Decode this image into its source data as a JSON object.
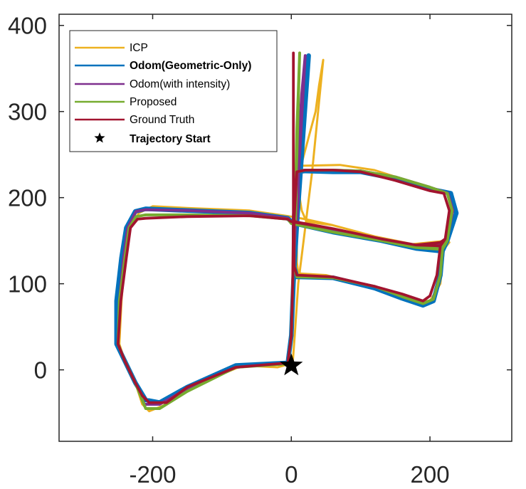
{
  "chart_data": {
    "type": "line",
    "title": "",
    "xlabel": "",
    "ylabel": "",
    "xlim": [
      -335,
      318
    ],
    "ylim": [
      -83,
      413
    ],
    "xticks": [
      -200,
      0,
      200
    ],
    "xtick_labels": [
      "-200",
      "0",
      "200"
    ],
    "yticks": [
      0,
      100,
      200,
      300,
      400
    ],
    "ytick_labels": [
      "0",
      "100",
      "200",
      "300",
      "400"
    ],
    "grid": false,
    "legend_position": "top-left",
    "series": [
      {
        "name": "ICP",
        "color": "#EDB120",
        "points": [
          [
            -20,
            3
          ],
          [
            -70,
            5
          ],
          [
            -130,
            -15
          ],
          [
            -180,
            -40
          ],
          [
            -205,
            -48
          ],
          [
            -215,
            -40
          ],
          [
            -225,
            -15
          ],
          [
            -240,
            10
          ],
          [
            -248,
            30
          ],
          [
            -245,
            80
          ],
          [
            -240,
            130
          ],
          [
            -232,
            165
          ],
          [
            -220,
            182
          ],
          [
            -200,
            190
          ],
          [
            -150,
            188
          ],
          [
            -60,
            185
          ],
          [
            0,
            178
          ],
          [
            20,
            175
          ],
          [
            60,
            168
          ],
          [
            120,
            155
          ],
          [
            170,
            146
          ],
          [
            215,
            145
          ],
          [
            225,
            150
          ],
          [
            232,
            190
          ],
          [
            225,
            205
          ],
          [
            175,
            218
          ],
          [
            120,
            232
          ],
          [
            70,
            238
          ],
          [
            15,
            237
          ],
          [
            10,
            232
          ],
          [
            8,
            175
          ],
          [
            8,
            125
          ],
          [
            10,
            112
          ],
          [
            50,
            110
          ],
          [
            100,
            100
          ],
          [
            150,
            90
          ],
          [
            175,
            80
          ],
          [
            200,
            80
          ],
          [
            215,
            100
          ],
          [
            220,
            140
          ],
          [
            228,
            148
          ],
          [
            225,
            150
          ],
          [
            175,
            146
          ],
          [
            120,
            155
          ],
          [
            60,
            168
          ],
          [
            22,
            172
          ],
          [
            15,
            185
          ],
          [
            12,
            200
          ],
          [
            15,
            240
          ],
          [
            25,
            270
          ],
          [
            35,
            300
          ],
          [
            40,
            330
          ],
          [
            46,
            360
          ],
          [
            30,
            230
          ],
          [
            20,
            165
          ],
          [
            10,
            100
          ],
          [
            5,
            40
          ],
          [
            2,
            8
          ],
          [
            -20,
            3
          ]
        ]
      },
      {
        "name": "Odom(Geometric-Only)",
        "color": "#0072BD",
        "points": [
          [
            -5,
            8
          ],
          [
            -80,
            5
          ],
          [
            -150,
            -20
          ],
          [
            -190,
            -38
          ],
          [
            -210,
            -35
          ],
          [
            -225,
            -15
          ],
          [
            -240,
            10
          ],
          [
            -252,
            30
          ],
          [
            -252,
            80
          ],
          [
            -245,
            130
          ],
          [
            -238,
            165
          ],
          [
            -225,
            184
          ],
          [
            -210,
            187
          ],
          [
            -150,
            185
          ],
          [
            -60,
            182
          ],
          [
            -5,
            176
          ],
          [
            0,
            172
          ],
          [
            60,
            160
          ],
          [
            130,
            150
          ],
          [
            180,
            141
          ],
          [
            215,
            138
          ],
          [
            225,
            150
          ],
          [
            238,
            182
          ],
          [
            230,
            205
          ],
          [
            200,
            210
          ],
          [
            150,
            222
          ],
          [
            100,
            230
          ],
          [
            60,
            230
          ],
          [
            20,
            231
          ],
          [
            8,
            230
          ],
          [
            4,
            175
          ],
          [
            4,
            120
          ],
          [
            8,
            108
          ],
          [
            60,
            107
          ],
          [
            120,
            95
          ],
          [
            160,
            83
          ],
          [
            190,
            75
          ],
          [
            205,
            80
          ],
          [
            215,
            110
          ],
          [
            218,
            138
          ],
          [
            225,
            150
          ],
          [
            218,
            144
          ],
          [
            180,
            141
          ],
          [
            130,
            150
          ],
          [
            60,
            160
          ],
          [
            5,
            170
          ],
          [
            8,
            175
          ],
          [
            10,
            200
          ],
          [
            12,
            240
          ],
          [
            15,
            280
          ],
          [
            20,
            320
          ],
          [
            25,
            365
          ],
          [
            15,
            250
          ],
          [
            8,
            170
          ],
          [
            3,
            100
          ],
          [
            0,
            40
          ],
          [
            -5,
            8
          ]
        ]
      },
      {
        "name": "Odom(with intensity)",
        "color": "#7E2F8E",
        "points": [
          [
            -5,
            8
          ],
          [
            -80,
            3
          ],
          [
            -150,
            -22
          ],
          [
            -190,
            -40
          ],
          [
            -212,
            -40
          ],
          [
            -225,
            -15
          ],
          [
            -240,
            10
          ],
          [
            -250,
            30
          ],
          [
            -248,
            80
          ],
          [
            -242,
            130
          ],
          [
            -236,
            165
          ],
          [
            -224,
            184
          ],
          [
            -210,
            186
          ],
          [
            -150,
            185
          ],
          [
            -60,
            182
          ],
          [
            -5,
            176
          ],
          [
            0,
            172
          ],
          [
            60,
            162
          ],
          [
            130,
            152
          ],
          [
            180,
            144
          ],
          [
            215,
            142
          ],
          [
            225,
            152
          ],
          [
            233,
            185
          ],
          [
            226,
            205
          ],
          [
            200,
            212
          ],
          [
            150,
            224
          ],
          [
            100,
            231
          ],
          [
            60,
            232
          ],
          [
            20,
            232
          ],
          [
            8,
            230
          ],
          [
            4,
            175
          ],
          [
            4,
            120
          ],
          [
            8,
            108
          ],
          [
            60,
            107
          ],
          [
            120,
            97
          ],
          [
            160,
            85
          ],
          [
            190,
            77
          ],
          [
            205,
            82
          ],
          [
            215,
            110
          ],
          [
            218,
            142
          ],
          [
            225,
            152
          ],
          [
            218,
            146
          ],
          [
            180,
            144
          ],
          [
            130,
            152
          ],
          [
            60,
            162
          ],
          [
            5,
            172
          ],
          [
            8,
            175
          ],
          [
            10,
            200
          ],
          [
            10,
            240
          ],
          [
            12,
            280
          ],
          [
            15,
            320
          ],
          [
            20,
            365
          ],
          [
            12,
            250
          ],
          [
            6,
            170
          ],
          [
            2,
            100
          ],
          [
            0,
            40
          ],
          [
            -5,
            8
          ]
        ]
      },
      {
        "name": "Proposed",
        "color": "#77AC30",
        "points": [
          [
            -5,
            7
          ],
          [
            -80,
            3
          ],
          [
            -150,
            -25
          ],
          [
            -190,
            -45
          ],
          [
            -210,
            -45
          ],
          [
            -225,
            -15
          ],
          [
            -240,
            10
          ],
          [
            -250,
            30
          ],
          [
            -248,
            80
          ],
          [
            -240,
            130
          ],
          [
            -234,
            165
          ],
          [
            -224,
            178
          ],
          [
            -210,
            180
          ],
          [
            -150,
            180
          ],
          [
            -60,
            179
          ],
          [
            -5,
            175
          ],
          [
            0,
            170
          ],
          [
            60,
            160
          ],
          [
            130,
            150
          ],
          [
            180,
            142
          ],
          [
            215,
            140
          ],
          [
            225,
            150
          ],
          [
            232,
            185
          ],
          [
            225,
            205
          ],
          [
            200,
            212
          ],
          [
            150,
            224
          ],
          [
            100,
            231
          ],
          [
            60,
            232
          ],
          [
            20,
            232
          ],
          [
            8,
            230
          ],
          [
            4,
            175
          ],
          [
            4,
            120
          ],
          [
            8,
            108
          ],
          [
            60,
            107
          ],
          [
            120,
            97
          ],
          [
            160,
            85
          ],
          [
            190,
            77
          ],
          [
            205,
            82
          ],
          [
            215,
            110
          ],
          [
            218,
            140
          ],
          [
            225,
            150
          ],
          [
            218,
            144
          ],
          [
            180,
            142
          ],
          [
            130,
            150
          ],
          [
            60,
            160
          ],
          [
            5,
            170
          ],
          [
            6,
            175
          ],
          [
            7,
            200
          ],
          [
            7,
            240
          ],
          [
            8,
            280
          ],
          [
            10,
            320
          ],
          [
            12,
            368
          ],
          [
            8,
            250
          ],
          [
            4,
            170
          ],
          [
            2,
            100
          ],
          [
            0,
            40
          ],
          [
            -5,
            7
          ]
        ]
      },
      {
        "name": "Ground Truth",
        "color": "#A2142F",
        "points": [
          [
            -5,
            8
          ],
          [
            -80,
            3
          ],
          [
            -150,
            -20
          ],
          [
            -180,
            -38
          ],
          [
            -205,
            -38
          ],
          [
            -215,
            -30
          ],
          [
            -225,
            -15
          ],
          [
            -240,
            10
          ],
          [
            -250,
            30
          ],
          [
            -246,
            80
          ],
          [
            -238,
            130
          ],
          [
            -232,
            165
          ],
          [
            -222,
            175
          ],
          [
            -210,
            176
          ],
          [
            -150,
            178
          ],
          [
            -60,
            179
          ],
          [
            -5,
            175
          ],
          [
            0,
            172
          ],
          [
            60,
            164
          ],
          [
            130,
            152
          ],
          [
            180,
            145
          ],
          [
            215,
            144
          ],
          [
            222,
            152
          ],
          [
            228,
            185
          ],
          [
            220,
            205
          ],
          [
            200,
            208
          ],
          [
            150,
            220
          ],
          [
            100,
            230
          ],
          [
            60,
            232
          ],
          [
            20,
            232
          ],
          [
            8,
            230
          ],
          [
            4,
            175
          ],
          [
            4,
            120
          ],
          [
            8,
            110
          ],
          [
            60,
            108
          ],
          [
            120,
            97
          ],
          [
            160,
            88
          ],
          [
            190,
            80
          ],
          [
            200,
            86
          ],
          [
            210,
            110
          ],
          [
            215,
            144
          ],
          [
            222,
            152
          ],
          [
            215,
            148
          ],
          [
            180,
            145
          ],
          [
            130,
            152
          ],
          [
            60,
            164
          ],
          [
            5,
            172
          ],
          [
            4,
            175
          ],
          [
            4,
            200
          ],
          [
            3,
            240
          ],
          [
            3,
            280
          ],
          [
            3,
            320
          ],
          [
            3,
            368
          ],
          [
            3,
            250
          ],
          [
            3,
            170
          ],
          [
            2,
            100
          ],
          [
            0,
            40
          ],
          [
            -5,
            8
          ]
        ]
      }
    ],
    "markers": [
      {
        "name": "Trajectory Start",
        "symbol": "star",
        "color": "#000000",
        "point": [
          0,
          5
        ]
      }
    ]
  }
}
